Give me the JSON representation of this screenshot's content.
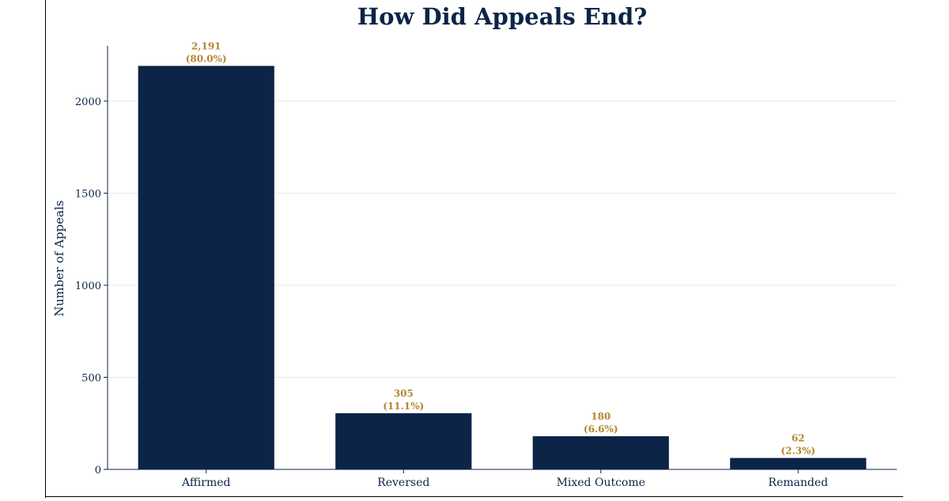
{
  "chart_data": {
    "type": "bar",
    "title": "How Did Appeals End?",
    "xlabel": "",
    "ylabel": "Number of Appeals",
    "categories": [
      "Affirmed",
      "Reversed",
      "Mixed Outcome",
      "Remanded"
    ],
    "values": [
      2191,
      305,
      180,
      62
    ],
    "data_labels": [
      {
        "count": "2,191",
        "percent": "(80.0%)"
      },
      {
        "count": "305",
        "percent": "(11.1%)"
      },
      {
        "count": "180",
        "percent": "(6.6%)"
      },
      {
        "count": "62",
        "percent": "(2.3%)"
      }
    ],
    "ylim": [
      0,
      2300
    ],
    "yticks": [
      0,
      500,
      1000,
      1500,
      2000
    ],
    "grid": true,
    "legend": "none",
    "colors": {
      "bar": "#0b2447",
      "label": "#b5862f",
      "text": "#0b2447",
      "grid": "#e8e8e8"
    }
  }
}
